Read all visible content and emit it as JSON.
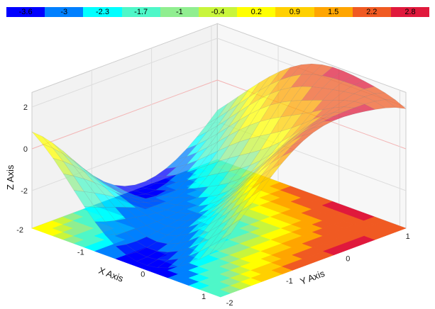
{
  "chart_data": {
    "type": "surface3d",
    "title": "",
    "xlabel": "X Axis",
    "ylabel": "Y Axis",
    "zlabel": "Z Axis",
    "xlim": [
      -2,
      1.1
    ],
    "ylim": [
      -2,
      1.1
    ],
    "zlim": [
      -3.8,
      2.7
    ],
    "x_ticks": [
      "-2",
      "-1",
      "0",
      "1"
    ],
    "y_ticks": [
      "-2",
      "-1",
      "0",
      "1"
    ],
    "z_ticks": [
      "2",
      "0",
      "-2"
    ],
    "function": "z = -0.4 + 3.2*sin(0.95*(x+y+0.55)) - 1.2*exp(-(x-y)^2)*cos(x+y)",
    "colorscale": [
      {
        "value": "-3.6",
        "color": "#0000ff"
      },
      {
        "value": "-3",
        "color": "#0080ff"
      },
      {
        "value": "-2.3",
        "color": "#00ffff"
      },
      {
        "value": "-1.7",
        "color": "#4ef7c8"
      },
      {
        "value": "-1",
        "color": "#90ee90"
      },
      {
        "value": "-0.4",
        "color": "#c8f53c"
      },
      {
        "value": "0.2",
        "color": "#ffff00"
      },
      {
        "value": "0.9",
        "color": "#ffd000"
      },
      {
        "value": "1.5",
        "color": "#ffa500"
      },
      {
        "value": "2.2",
        "color": "#f05a22"
      },
      {
        "value": "2.8",
        "color": "#e0193c"
      }
    ]
  }
}
